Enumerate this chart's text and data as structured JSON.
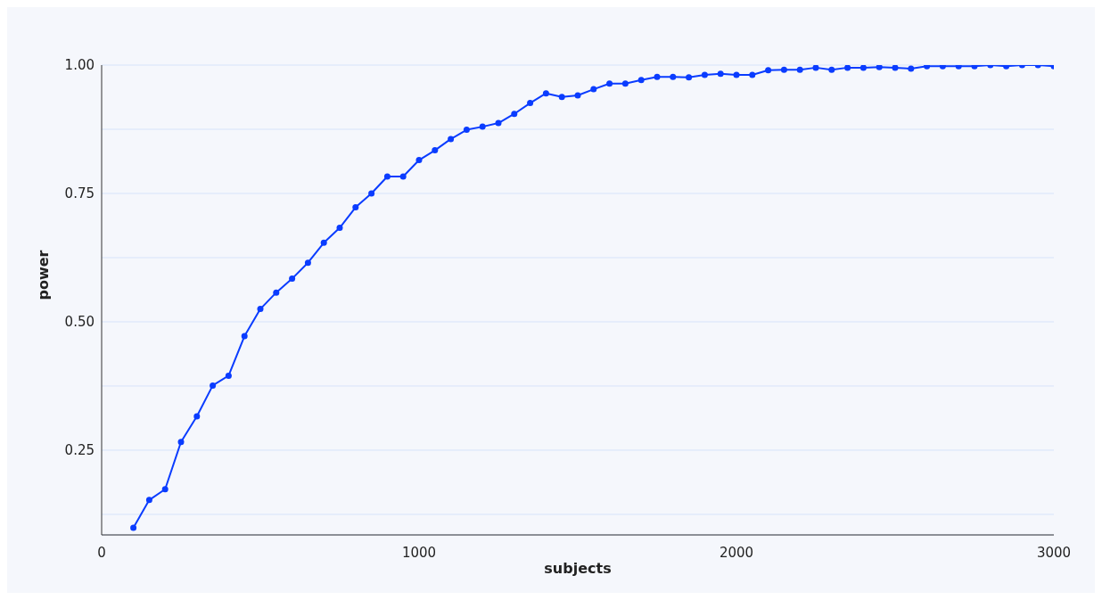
{
  "chart_data": {
    "type": "line",
    "xlabel": "subjects",
    "ylabel": "power",
    "x": [
      100,
      150,
      200,
      250,
      300,
      350,
      400,
      450,
      500,
      550,
      600,
      650,
      700,
      750,
      800,
      850,
      900,
      950,
      1000,
      1050,
      1100,
      1150,
      1200,
      1250,
      1300,
      1350,
      1400,
      1450,
      1500,
      1550,
      1600,
      1650,
      1700,
      1750,
      1800,
      1850,
      1900,
      1950,
      2000,
      2050,
      2100,
      2150,
      2200,
      2250,
      2300,
      2350,
      2400,
      2450,
      2500,
      2550,
      2600,
      2650,
      2700,
      2750,
      2800,
      2850,
      2900,
      2950,
      3000
    ],
    "series": [
      {
        "color": "#0a3cff",
        "values": [
          0.099,
          0.153,
          0.174,
          0.266,
          0.316,
          0.376,
          0.395,
          0.472,
          0.525,
          0.557,
          0.584,
          0.615,
          0.654,
          0.683,
          0.723,
          0.75,
          0.783,
          0.783,
          0.815,
          0.834,
          0.856,
          0.874,
          0.88,
          0.887,
          0.905,
          0.926,
          0.945,
          0.938,
          0.941,
          0.953,
          0.964,
          0.964,
          0.971,
          0.977,
          0.977,
          0.976,
          0.981,
          0.983,
          0.981,
          0.981,
          0.99,
          0.991,
          0.991,
          0.995,
          0.991,
          0.995,
          0.995,
          0.996,
          0.995,
          0.993,
          0.998,
          0.998,
          0.998,
          0.998,
          1.0,
          0.998,
          1.0,
          1.0,
          0.998
        ]
      }
    ],
    "xlim": [
      0,
      3000
    ],
    "xticks": [
      0,
      1000,
      2000,
      3000
    ],
    "ylim": [
      0.085,
      1.0
    ],
    "yticks": [
      {
        "value": 0.125,
        "label": null
      },
      {
        "value": 0.25,
        "label": "0.25"
      },
      {
        "value": 0.375,
        "label": null
      },
      {
        "value": 0.5,
        "label": "0.50"
      },
      {
        "value": 0.625,
        "label": null
      },
      {
        "value": 0.75,
        "label": "0.75"
      },
      {
        "value": 0.875,
        "label": null
      },
      {
        "value": 1.0,
        "label": "1.00"
      }
    ],
    "grid": "y",
    "marker": "circle",
    "line_style": "solid"
  }
}
